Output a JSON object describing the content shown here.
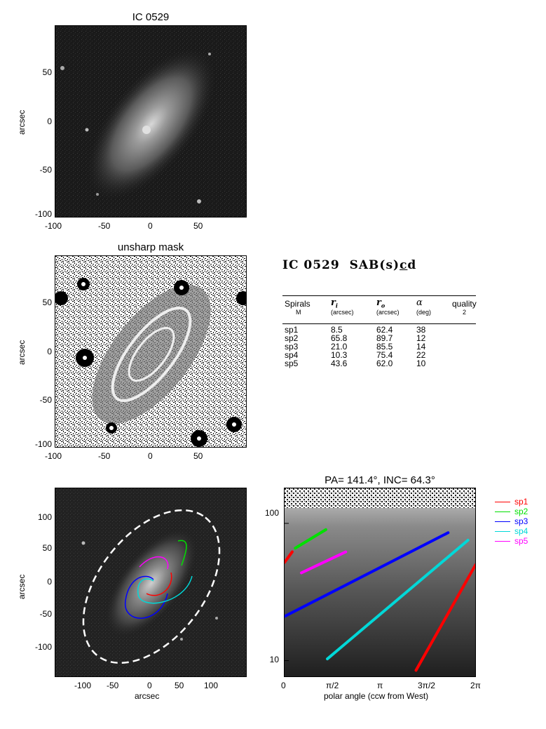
{
  "panel1": {
    "title": "IC 0529",
    "ylabel": "arcsec",
    "xticks": [
      "-100",
      "-50",
      "0",
      "50"
    ],
    "yticks": [
      "50",
      "0",
      "-50",
      "-100"
    ]
  },
  "panel2": {
    "title": "unsharp mask",
    "ylabel": "arcsec",
    "xticks": [
      "-100",
      "-50",
      "0",
      "50"
    ],
    "yticks": [
      "50",
      "0",
      "-50",
      "-100"
    ]
  },
  "info": {
    "galaxy": "IC 0529",
    "morph_pre": "SAB(s)",
    "morph_c": "c",
    "morph_post": "d",
    "headers": {
      "spirals": "Spirals",
      "m": "M",
      "ri": "r",
      "ri_sub": "i",
      "ri_unit": "(arcsec)",
      "ro": "r",
      "ro_sub": "o",
      "ro_unit": "(arcsec)",
      "alpha": "α",
      "alpha_unit": "(deg)",
      "quality": "quality",
      "quality_val": "2"
    },
    "rows": [
      {
        "name": "sp1",
        "ri": "8.5",
        "ro": "62.4",
        "alpha": "38"
      },
      {
        "name": "sp2",
        "ri": "65.8",
        "ro": "89.7",
        "alpha": "12"
      },
      {
        "name": "sp3",
        "ri": "21.0",
        "ro": "85.5",
        "alpha": "14"
      },
      {
        "name": "sp4",
        "ri": "10.3",
        "ro": "75.4",
        "alpha": "22"
      },
      {
        "name": "sp5",
        "ri": "43.6",
        "ro": "62.0",
        "alpha": "10"
      }
    ]
  },
  "panel3": {
    "xlabel": "arcsec",
    "ylabel": "arcsec",
    "xticks": [
      "-100",
      "-50",
      "0",
      "50",
      "100"
    ],
    "yticks": [
      "100",
      "50",
      "0",
      "-50",
      "-100"
    ]
  },
  "panel4": {
    "title": "PA= 141.4°, INC=  64.3°",
    "xlabel": "polar angle (ccw from West)",
    "xticks": [
      "0",
      "π/2",
      "π",
      "3π/2",
      "2π"
    ],
    "yticks": [
      "100",
      "10"
    ]
  },
  "legend": [
    {
      "label": "sp1",
      "color": "#ff0000"
    },
    {
      "label": "sp2",
      "color": "#00e000"
    },
    {
      "label": "sp3",
      "color": "#0000ff"
    },
    {
      "label": "sp4",
      "color": "#00d8d8"
    },
    {
      "label": "sp5",
      "color": "#ff00ff"
    }
  ],
  "chart_data": {
    "type": "line",
    "x_scale": "polar angle (radians)",
    "y_scale": "log",
    "xlim": [
      0,
      6.283
    ],
    "ylim": [
      7.5,
      180
    ],
    "series": [
      {
        "name": "sp1",
        "color": "#ff0000",
        "x": [
          0.0,
          0.25,
          4.3,
          6.25
        ],
        "y": [
          52,
          62,
          8.5,
          50
        ]
      },
      {
        "name": "sp2",
        "color": "#00e000",
        "x": [
          0.35,
          1.35
        ],
        "y": [
          66,
          90
        ]
      },
      {
        "name": "sp3",
        "color": "#0000ff",
        "x": [
          0.0,
          5.35
        ],
        "y": [
          21,
          85.5
        ]
      },
      {
        "name": "sp4",
        "color": "#00d8d8",
        "x": [
          1.4,
          6.0
        ],
        "y": [
          10.3,
          75.4
        ]
      },
      {
        "name": "sp5",
        "color": "#ff00ff",
        "x": [
          0.55,
          2.0
        ],
        "y": [
          43.6,
          62
        ]
      }
    ]
  }
}
